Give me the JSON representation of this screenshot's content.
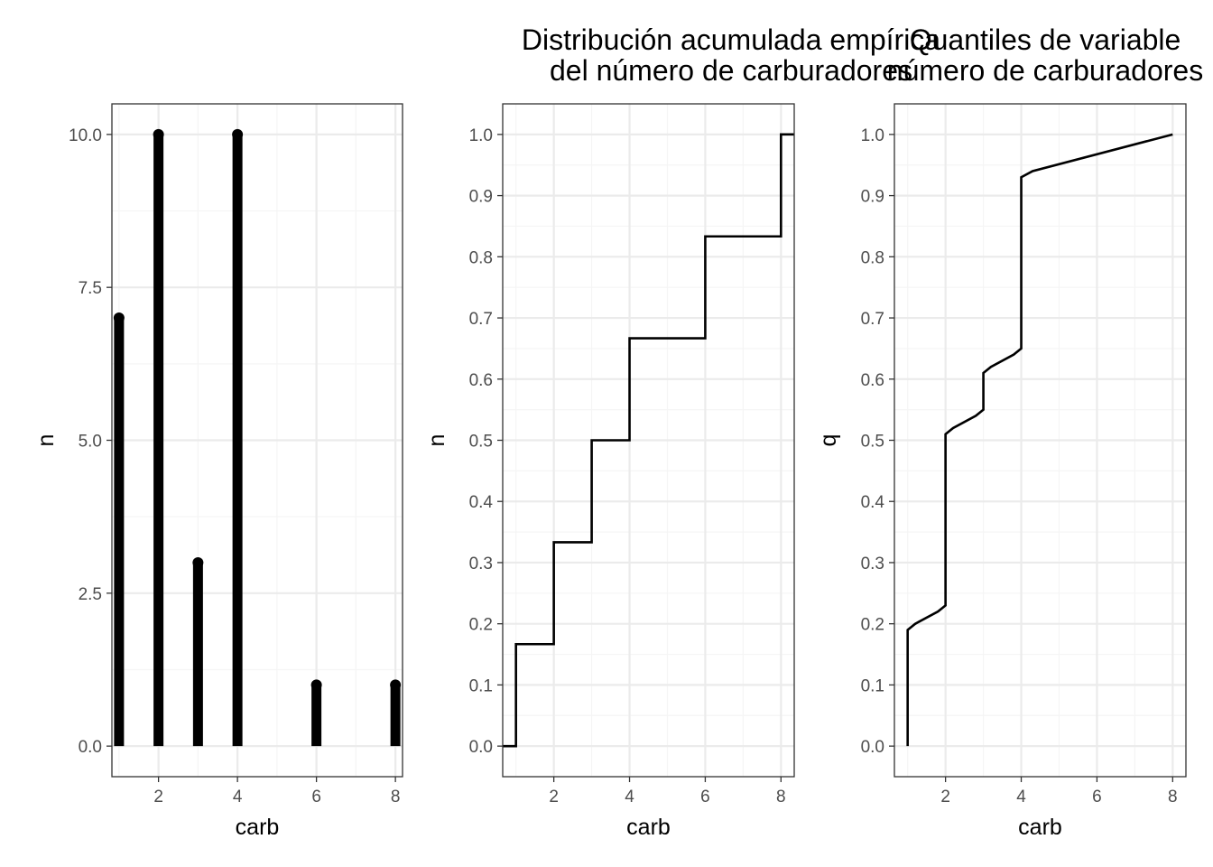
{
  "chart_data": [
    {
      "type": "bar",
      "title": "",
      "xlabel": "carb",
      "ylabel": "n",
      "xlim": [
        0.82,
        8.18
      ],
      "ylim": [
        -0.5,
        10.5
      ],
      "x_ticks": [
        2,
        4,
        6,
        8
      ],
      "x_tick_labels": [
        "2",
        "4",
        "6",
        "8"
      ],
      "y_ticks": [
        0,
        2.5,
        5,
        7.5,
        10
      ],
      "y_tick_labels": [
        "0.0",
        "2.5",
        "5.0",
        "7.5",
        "10.0"
      ],
      "x": [
        1,
        2,
        3,
        4,
        6,
        8
      ],
      "values": [
        7,
        10,
        3,
        10,
        1,
        1
      ],
      "grid": true,
      "style": "lollipop"
    },
    {
      "type": "line",
      "title_lines": [
        "Distribución acumulada empírica",
        " del número de carburadores"
      ],
      "xlabel": "carb",
      "ylabel": "n",
      "xlim": [
        0.65,
        8.35
      ],
      "ylim": [
        -0.05,
        1.05
      ],
      "x_ticks": [
        2,
        4,
        6,
        8
      ],
      "x_tick_labels": [
        "2",
        "4",
        "6",
        "8"
      ],
      "y_ticks": [
        0,
        0.1,
        0.2,
        0.3,
        0.4,
        0.5,
        0.6,
        0.7,
        0.8,
        0.9,
        1.0
      ],
      "y_tick_labels": [
        "0.0",
        "0.1",
        "0.2",
        "0.3",
        "0.4",
        "0.5",
        "0.6",
        "0.7",
        "0.8",
        "0.9",
        "1.0"
      ],
      "step": true,
      "x": [
        1,
        2,
        3,
        4,
        6,
        8
      ],
      "y": [
        0.1667,
        0.3333,
        0.5,
        0.6667,
        0.8333,
        1.0
      ],
      "grid": true
    },
    {
      "type": "line",
      "title_lines": [
        "Quantiles de variable",
        "número de carburadores"
      ],
      "xlabel": "carb",
      "ylabel": "q",
      "xlim": [
        0.65,
        8.35
      ],
      "ylim": [
        -0.05,
        1.05
      ],
      "x_ticks": [
        2,
        4,
        6,
        8
      ],
      "x_tick_labels": [
        "2",
        "4",
        "6",
        "8"
      ],
      "y_ticks": [
        0,
        0.1,
        0.2,
        0.3,
        0.4,
        0.5,
        0.6,
        0.7,
        0.8,
        0.9,
        1.0
      ],
      "y_tick_labels": [
        "0.0",
        "0.1",
        "0.2",
        "0.3",
        "0.4",
        "0.5",
        "0.6",
        "0.7",
        "0.8",
        "0.9",
        "1.0"
      ],
      "x": [
        1,
        1,
        1.2,
        1.8,
        2,
        2,
        2.2,
        2.8,
        3,
        3,
        3.2,
        3.8,
        4,
        4,
        4.3,
        8
      ],
      "y": [
        0,
        0.19,
        0.2,
        0.22,
        0.23,
        0.51,
        0.52,
        0.54,
        0.55,
        0.61,
        0.62,
        0.64,
        0.65,
        0.93,
        0.94,
        1.0
      ],
      "grid": true
    }
  ],
  "colors": {
    "panel_border": "#333333",
    "grid_major": "#ebebeb",
    "grid_minor": "#f5f5f5",
    "mark": "#000000",
    "tick_label": "#4d4d4d"
  }
}
